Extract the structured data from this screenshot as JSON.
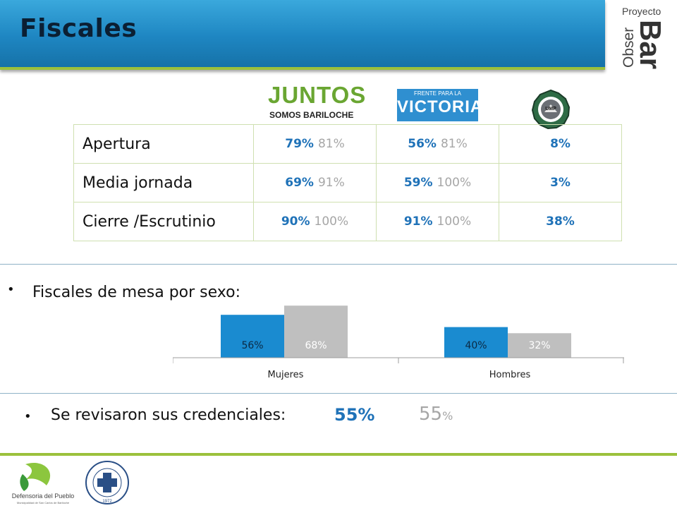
{
  "header": {
    "title": "Fiscales",
    "brand_line1": "Proyecto",
    "brand_obser": "Obser",
    "brand_bar": "Bar"
  },
  "logos": {
    "juntos": {
      "main": "JUNTOS",
      "sub": "SOMOS BARILOCHE"
    },
    "fpv": {
      "top": "FRENTE PARA LA",
      "main": "VICTORIA"
    },
    "ump": {
      "text": "UMP"
    }
  },
  "table": {
    "rows": [
      {
        "label": "Apertura",
        "juntos_blue": "79%",
        "juntos_gray": "81%",
        "fpv_blue": "56%",
        "fpv_gray": "81%",
        "ump_blue": "8%"
      },
      {
        "label": "Media jornada",
        "juntos_blue": "69%",
        "juntos_gray": "91%",
        "fpv_blue": "59%",
        "fpv_gray": "100%",
        "ump_blue": "3%"
      },
      {
        "label": "Cierre /Escrutinio",
        "juntos_blue": "90%",
        "juntos_gray": "100%",
        "fpv_blue": "91%",
        "fpv_gray": "100%",
        "ump_blue": "38%"
      }
    ]
  },
  "bullets": {
    "sexo": "Fiscales de mesa por sexo:",
    "credenciales": "Se revisaron sus credenciales:",
    "credenciales_blue": "55%",
    "credenciales_gray": "55",
    "credenciales_gray_sup": "%"
  },
  "chart_data": {
    "type": "bar",
    "categories": [
      "Mujeres",
      "Hombres"
    ],
    "series": [
      {
        "values": [
          56,
          40
        ],
        "labels": [
          "56%",
          "40%"
        ],
        "color": "#1a8bd0"
      },
      {
        "values": [
          68,
          32
        ],
        "labels": [
          "68%",
          "32%"
        ],
        "color": "#bfbfbf"
      }
    ],
    "ylim": [
      0,
      70
    ],
    "grid": false,
    "legend": "none"
  },
  "footer": {
    "defensoria": "Defensoria del Pueblo",
    "defensoria_sub": "Municipalidad de San Carlos de Bariloche",
    "uncoma_year": "1972"
  },
  "colors": {
    "accent_blue": "#1f72b8",
    "muted_gray": "#a6a6a6",
    "green_rule": "#9bc13c",
    "title_bar": "#1e86c2"
  }
}
